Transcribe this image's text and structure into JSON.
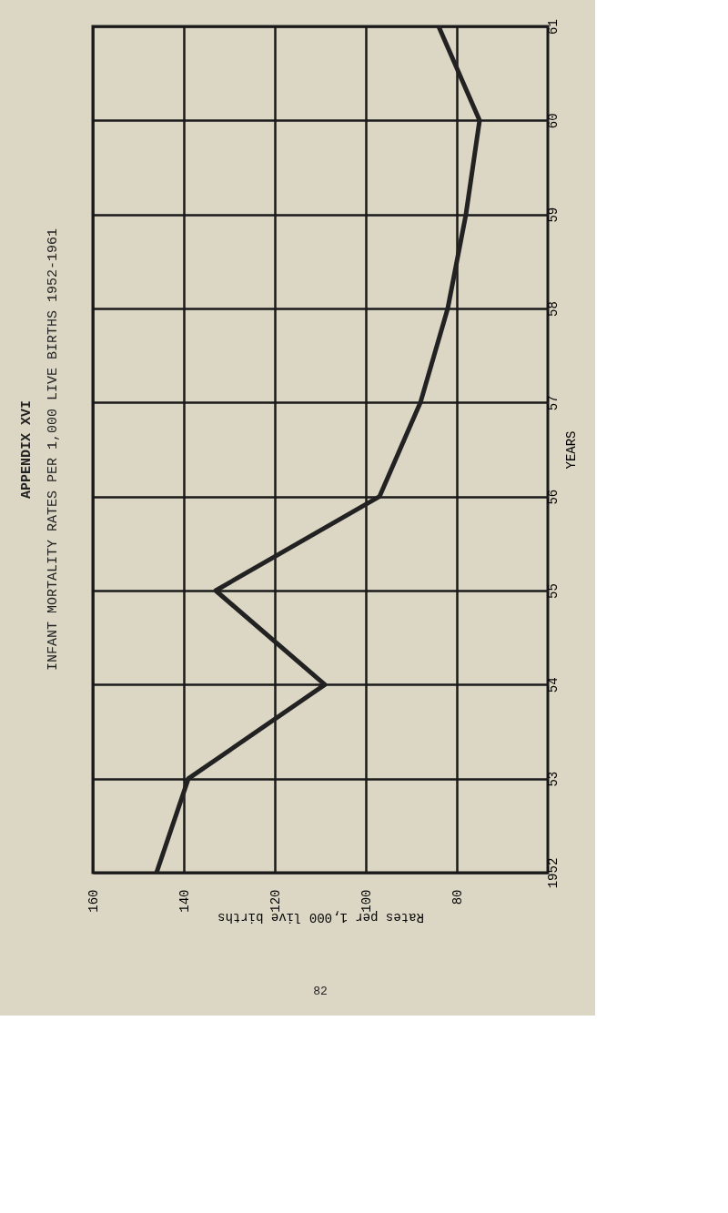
{
  "chart_data": {
    "type": "line",
    "title": "APPENDIX XVI",
    "subtitle": "INFANT MORTALITY RATES PER 1,000 LIVE BIRTHS 1952-1961",
    "xlabel": "Rates per 1,000 live births",
    "ylabel": "YEARS",
    "orientation": "horizontal",
    "categories": [
      "61",
      "60",
      "59",
      "58",
      "57",
      "56",
      "55",
      "54",
      "53",
      "1952"
    ],
    "series": [
      {
        "color": "#222222",
        "values": [
          84,
          75,
          78,
          82,
          88,
          97,
          133,
          109,
          139,
          146
        ]
      }
    ],
    "xlim": [
      160,
      60
    ],
    "xticks": [
      160,
      140,
      120,
      100,
      80
    ],
    "grid": true,
    "legend": false,
    "marker": "none",
    "line_style": "solid",
    "annotations": [
      "82"
    ]
  }
}
